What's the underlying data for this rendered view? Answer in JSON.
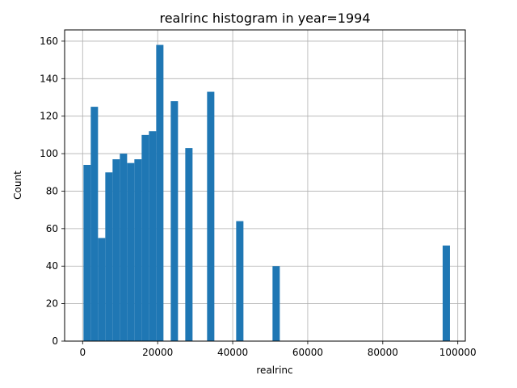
{
  "chart_data": {
    "type": "bar",
    "title": "realrinc histogram in year=1994",
    "xlabel": "realrinc",
    "ylabel": "Count",
    "xlim": [
      -4800,
      102000
    ],
    "ylim": [
      0,
      166
    ],
    "grid": true,
    "color": "#1f77b4",
    "x_ticks": [
      0,
      20000,
      40000,
      60000,
      80000,
      100000
    ],
    "y_ticks": [
      0,
      20,
      40,
      60,
      80,
      100,
      120,
      140,
      160
    ],
    "bins": [
      {
        "x0": 227,
        "x1": 2165,
        "count": 94
      },
      {
        "x0": 2165,
        "x1": 4103,
        "count": 125
      },
      {
        "x0": 4103,
        "x1": 6041,
        "count": 55
      },
      {
        "x0": 6041,
        "x1": 7979,
        "count": 90
      },
      {
        "x0": 7979,
        "x1": 9917,
        "count": 97
      },
      {
        "x0": 9917,
        "x1": 11855,
        "count": 100
      },
      {
        "x0": 11855,
        "x1": 13793,
        "count": 95
      },
      {
        "x0": 13793,
        "x1": 15731,
        "count": 97
      },
      {
        "x0": 15731,
        "x1": 17669,
        "count": 110
      },
      {
        "x0": 17669,
        "x1": 19607,
        "count": 112
      },
      {
        "x0": 19607,
        "x1": 21545,
        "count": 158
      },
      {
        "x0": 23483,
        "x1": 25421,
        "count": 128
      },
      {
        "x0": 27359,
        "x1": 29297,
        "count": 103
      },
      {
        "x0": 33173,
        "x1": 35111,
        "count": 133
      },
      {
        "x0": 40925,
        "x1": 42863,
        "count": 64
      },
      {
        "x0": 50615,
        "x1": 52553,
        "count": 40
      },
      {
        "x0": 95963,
        "x1": 97901,
        "count": 51
      }
    ]
  }
}
